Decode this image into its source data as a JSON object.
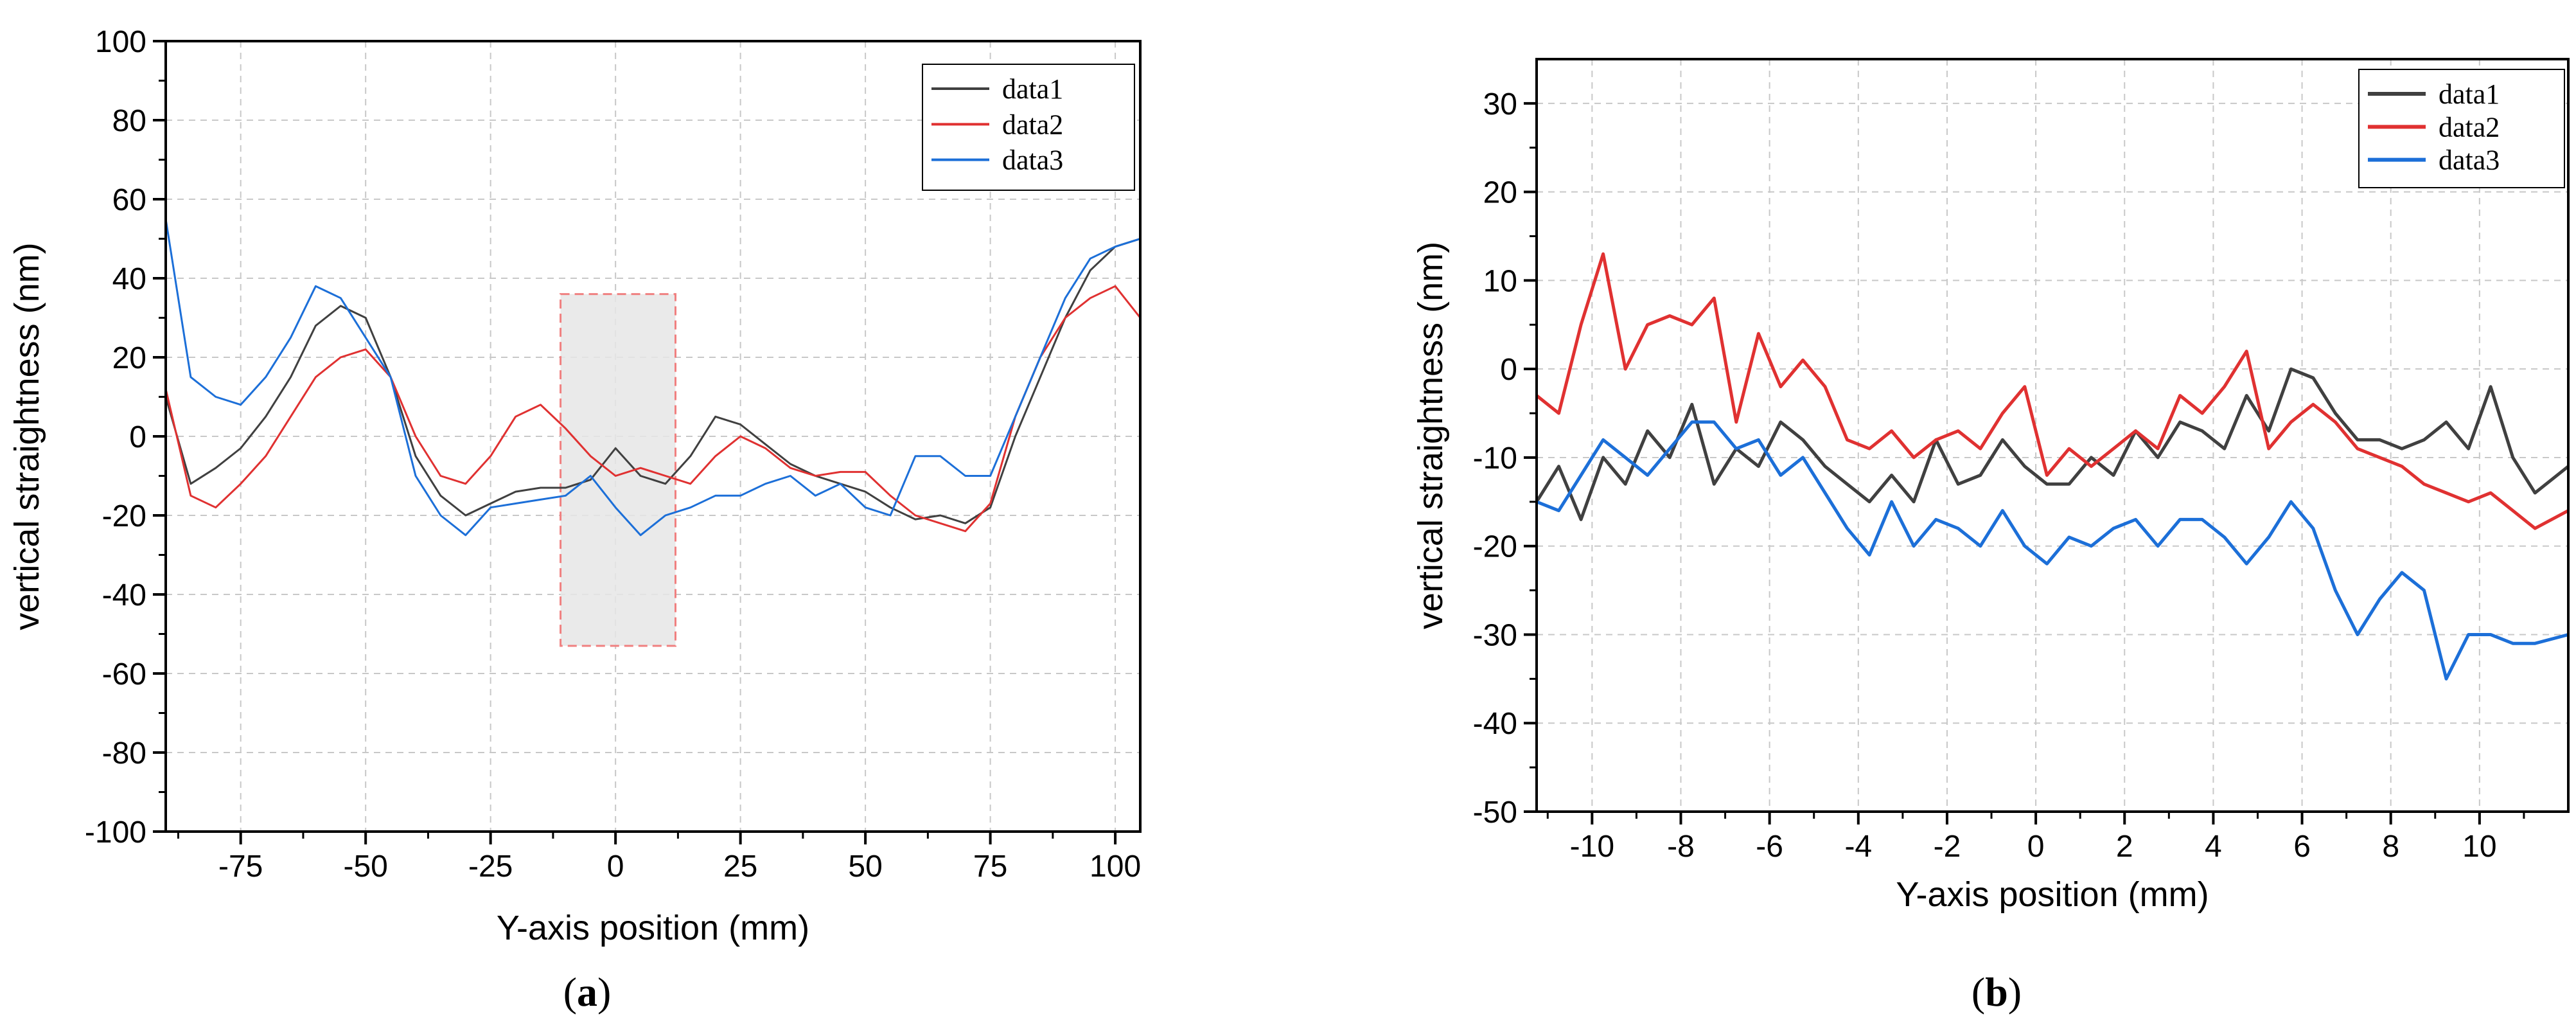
{
  "chart_data": [
    {
      "type": "line",
      "panel": "a",
      "xlabel": "Y-axis position (mm)",
      "ylabel": "vertical straightness (nm)",
      "xlim": [
        -90,
        105
      ],
      "ylim": [
        -100,
        100
      ],
      "xticks": [
        -75,
        -50,
        -25,
        0,
        25,
        50,
        75,
        100
      ],
      "yticks": [
        -100,
        -80,
        -60,
        -40,
        -20,
        0,
        20,
        40,
        60,
        80,
        100
      ],
      "grid": true,
      "legend_position": "top-right",
      "highlight_region": {
        "x": [
          -11,
          12
        ],
        "y": [
          -53,
          36
        ]
      },
      "x": [
        -90,
        -85,
        -80,
        -75,
        -70,
        -65,
        -60,
        -55,
        -50,
        -45,
        -40,
        -35,
        -30,
        -25,
        -20,
        -15,
        -10,
        -5,
        0,
        5,
        10,
        15,
        20,
        25,
        30,
        35,
        40,
        45,
        50,
        55,
        60,
        65,
        70,
        75,
        80,
        85,
        90,
        95,
        100,
        105
      ],
      "series": [
        {
          "name": "data1",
          "color": "#404040",
          "values": [
            10,
            -12,
            -8,
            -3,
            5,
            15,
            28,
            33,
            30,
            15,
            -5,
            -15,
            -20,
            -17,
            -14,
            -13,
            -13,
            -11,
            -3,
            -10,
            -12,
            -5,
            5,
            3,
            -2,
            -7,
            -10,
            -12,
            -14,
            -18,
            -21,
            -20,
            -22,
            -18,
            0,
            15,
            30,
            42,
            48,
            50
          ]
        },
        {
          "name": "data2",
          "color": "#e03131",
          "values": [
            12,
            -15,
            -18,
            -12,
            -5,
            5,
            15,
            20,
            22,
            15,
            0,
            -10,
            -12,
            -5,
            5,
            8,
            2,
            -5,
            -10,
            -8,
            -10,
            -12,
            -5,
            0,
            -3,
            -8,
            -10,
            -9,
            -9,
            -15,
            -20,
            -22,
            -24,
            -17,
            5,
            20,
            30,
            35,
            38,
            30
          ]
        },
        {
          "name": "data3",
          "color": "#1c6fd8",
          "values": [
            55,
            15,
            10,
            8,
            15,
            25,
            38,
            35,
            25,
            15,
            -10,
            -20,
            -25,
            -18,
            -17,
            -16,
            -15,
            -10,
            -18,
            -25,
            -20,
            -18,
            -15,
            -15,
            -12,
            -10,
            -15,
            -12,
            -18,
            -20,
            -5,
            -5,
            -10,
            -10,
            5,
            20,
            35,
            45,
            48,
            50
          ]
        }
      ]
    },
    {
      "type": "line",
      "panel": "b",
      "xlabel": "Y-axis position (mm)",
      "ylabel": "vertical straightness (nm)",
      "xlim": [
        -11.25,
        12
      ],
      "ylim": [
        -50,
        35
      ],
      "xticks": [
        -10,
        -8,
        -6,
        -4,
        -2,
        0,
        2,
        4,
        6,
        8,
        10
      ],
      "yticks": [
        -50,
        -40,
        -30,
        -20,
        -10,
        0,
        10,
        20,
        30
      ],
      "grid": true,
      "legend_position": "top-right",
      "x": [
        -11.25,
        -10.75,
        -10.25,
        -9.75,
        -9.25,
        -8.75,
        -8.25,
        -7.75,
        -7.25,
        -6.75,
        -6.25,
        -5.75,
        -5.25,
        -4.75,
        -4.25,
        -3.75,
        -3.25,
        -2.75,
        -2.25,
        -1.75,
        -1.25,
        -0.75,
        -0.25,
        0.25,
        0.75,
        1.25,
        1.75,
        2.25,
        2.75,
        3.25,
        3.75,
        4.25,
        4.75,
        5.25,
        5.75,
        6.25,
        6.75,
        7.25,
        7.75,
        8.25,
        8.75,
        9.25,
        9.75,
        10.25,
        10.75,
        11.25,
        12
      ],
      "series": [
        {
          "name": "data1",
          "color": "#404040",
          "values": [
            -15,
            -11,
            -17,
            -10,
            -13,
            -7,
            -10,
            -4,
            -13,
            -9,
            -11,
            -6,
            -8,
            -11,
            -13,
            -15,
            -12,
            -15,
            -8,
            -13,
            -12,
            -8,
            -11,
            -13,
            -13,
            -10,
            -12,
            -7,
            -10,
            -6,
            -7,
            -9,
            -3,
            -7,
            0,
            -1,
            -5,
            -8,
            -8,
            -9,
            -8,
            -6,
            -9,
            -2,
            -10,
            -14,
            -11
          ]
        },
        {
          "name": "data2",
          "color": "#e03131",
          "values": [
            -3,
            -5,
            5,
            13,
            0,
            5,
            6,
            5,
            8,
            -6,
            4,
            -2,
            1,
            -2,
            -8,
            -9,
            -7,
            -10,
            -8,
            -7,
            -9,
            -5,
            -2,
            -12,
            -9,
            -11,
            -9,
            -7,
            -9,
            -3,
            -5,
            -2,
            2,
            -9,
            -6,
            -4,
            -6,
            -9,
            -10,
            -11,
            -13,
            -14,
            -15,
            -14,
            -16,
            -18,
            -16
          ]
        },
        {
          "name": "data3",
          "color": "#1c6fd8",
          "values": [
            -15,
            -16,
            -12,
            -8,
            -10,
            -12,
            -9,
            -6,
            -6,
            -9,
            -8,
            -12,
            -10,
            -14,
            -18,
            -21,
            -15,
            -20,
            -17,
            -18,
            -20,
            -16,
            -20,
            -22,
            -19,
            -20,
            -18,
            -17,
            -20,
            -17,
            -17,
            -19,
            -22,
            -19,
            -15,
            -18,
            -25,
            -30,
            -26,
            -23,
            -25,
            -35,
            -30,
            -30,
            -31,
            -31,
            -30
          ]
        }
      ]
    }
  ],
  "captions": {
    "a": "a",
    "b": "b"
  }
}
